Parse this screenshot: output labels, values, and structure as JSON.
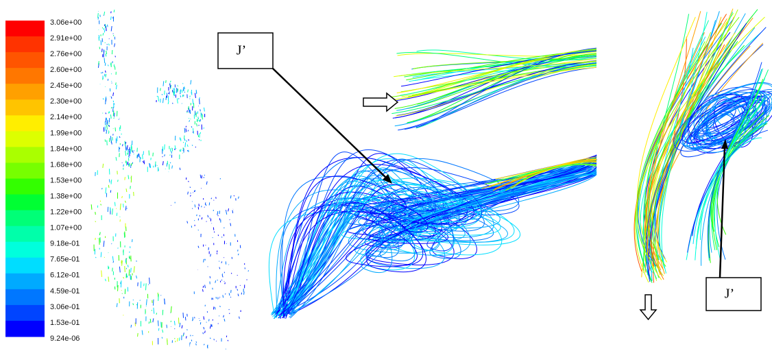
{
  "colorbar": {
    "labels": [
      "3.06e+00",
      "2.91e+00",
      "2.76e+00",
      "2.60e+00",
      "2.45e+00",
      "2.30e+00",
      "2.14e+00",
      "1.99e+00",
      "1.84e+00",
      "1.68e+00",
      "1.53e+00",
      "1.38e+00",
      "1.22e+00",
      "1.07e+00",
      "9.18e-01",
      "7.65e-01",
      "6.12e-01",
      "4.59e-01",
      "3.06e-01",
      "1.53e-01",
      "9.24e-06"
    ],
    "colors": [
      "#ff0000",
      "#ff3300",
      "#ff5500",
      "#ff7700",
      "#ffa000",
      "#ffc400",
      "#ffee00",
      "#ddff00",
      "#aaff00",
      "#77ff00",
      "#33ff00",
      "#00ff33",
      "#00ff77",
      "#00ffaa",
      "#00ffdd",
      "#00ddff",
      "#00aaff",
      "#0077ff",
      "#0044ff",
      "#0000ff"
    ]
  },
  "callouts": [
    {
      "label": "J’"
    },
    {
      "label": "J’"
    }
  ]
}
